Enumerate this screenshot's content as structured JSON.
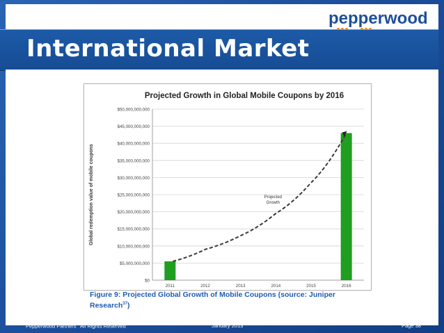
{
  "logo": {
    "text": "pepperwood"
  },
  "slide": {
    "title": "International Market"
  },
  "caption": {
    "text": "Figure 9: Projected Global Growth of Mobile Coupons (source: Juniper Research",
    "sup": "37",
    "close": ")"
  },
  "footer": {
    "left": "Pepperwood Partners",
    "left_sup": "©",
    "left_rest": " All Rights Reserved",
    "center": "January 2013",
    "right": "Page  38"
  },
  "colors": {
    "accent": "#1d5aa8",
    "bar": "#1f9e1f",
    "caption": "#1f5bb3"
  },
  "chart_data": {
    "type": "bar",
    "title": "Projected Growth in Global Mobile Coupons by 2016",
    "ylabel": "Global redemption value of mobile coupons",
    "xlabel": "",
    "categories": [
      "2011",
      "2012",
      "2013",
      "2014",
      "2015",
      "2016"
    ],
    "values": [
      5500000000,
      0,
      0,
      0,
      0,
      43000000000
    ],
    "ylim": [
      0,
      50000000000
    ],
    "yticks": [
      "$0",
      "$5,000,000,000",
      "$10,000,000,000",
      "$15,000,000,000",
      "$20,000,000,000",
      "$25,000,000,000",
      "$30,000,000,000",
      "$35,000,000,000",
      "$40,000,000,000",
      "$45,000,000,000",
      "$50,000,000,000"
    ],
    "trend": {
      "x": [
        "2011",
        "2012",
        "2013",
        "2014",
        "2015",
        "2016"
      ],
      "values": [
        5500000000,
        9000000000,
        13000000000,
        19500000000,
        28500000000,
        43000000000
      ]
    },
    "annotation": [
      "Projected",
      "Growth"
    ],
    "grid": true
  }
}
